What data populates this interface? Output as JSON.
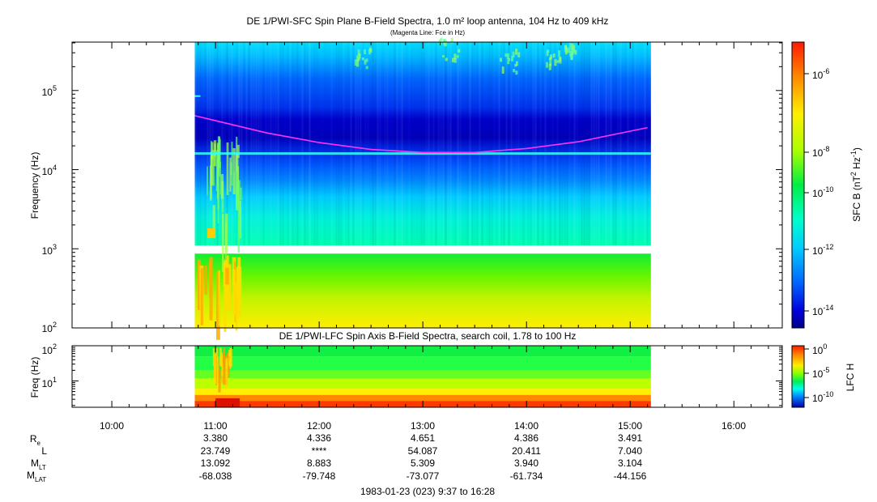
{
  "chart_data": [
    {
      "type": "heatmap",
      "title": "DE 1/PWI-SFC  Spin Plane B-Field Spectra, 1.0 m² loop antenna, 104 Hz to 409 kHz",
      "subtitle": "(Magenta Line: Fce in Hz)",
      "ylabel": "Frequency (Hz)",
      "yscale": "log",
      "ylim": [
        100,
        409000
      ],
      "yticks": [
        {
          "label": "10",
          "sup": "2",
          "value": 100
        },
        {
          "label": "10",
          "sup": "3",
          "value": 1000
        },
        {
          "label": "10",
          "sup": "4",
          "value": 10000
        },
        {
          "label": "10",
          "sup": "5",
          "value": 100000
        }
      ],
      "data_start": "10:48",
      "data_end": "15:12",
      "fce_line": {
        "color": "#ff33ff",
        "times": [
          "10:48",
          "11:30",
          "12:00",
          "12:30",
          "13:00",
          "13:30",
          "14:00",
          "14:30",
          "15:10"
        ],
        "freq_hz": [
          48000,
          29000,
          22000,
          18000,
          16500,
          16500,
          18500,
          22500,
          34000
        ]
      },
      "colorbar": {
        "label": "SFC B (nT",
        "label_sup1": "2",
        "label_mid": " Hz",
        "label_sup2": "-1",
        "label_end": ")",
        "scale": "log",
        "range": [
          1e-15,
          1e-05
        ],
        "ticks": [
          {
            "label": "10",
            "sup": "-6"
          },
          {
            "label": "10",
            "sup": "-8"
          },
          {
            "label": "10",
            "sup": "-10"
          },
          {
            "label": "10",
            "sup": "-12"
          },
          {
            "label": "10",
            "sup": "-14"
          }
        ]
      }
    },
    {
      "type": "heatmap",
      "title": "DE 1/PWI-LFC  Spin Axis B-Field Spectra, search coil, 1.78 to 100 Hz",
      "ylabel": "Freq (Hz)",
      "yscale": "log",
      "ylim": [
        1.78,
        100
      ],
      "yticks": [
        {
          "label": "10",
          "sup": "1",
          "value": 10
        },
        {
          "label": "10",
          "sup": "2",
          "value": 100
        }
      ],
      "data_start": "10:48",
      "data_end": "15:12",
      "colorbar": {
        "label": "LFC H",
        "scale": "log",
        "range": [
          1e-12,
          1
        ],
        "ticks": [
          {
            "label": "10",
            "sup": "0"
          },
          {
            "label": "10",
            "sup": "-5"
          },
          {
            "label": "10",
            "sup": "-10"
          }
        ]
      }
    }
  ],
  "time_axis": {
    "range": [
      "9:37",
      "16:28"
    ],
    "tick_labels": [
      "10:00",
      "11:00",
      "12:00",
      "13:00",
      "14:00",
      "15:00",
      "16:00"
    ]
  },
  "ephemeris": {
    "rows": [
      {
        "label": "R",
        "sub": "e",
        "values": [
          "3.380",
          "4.336",
          "4.651",
          "4.386",
          "3.491"
        ]
      },
      {
        "label": "L",
        "sub": "",
        "values": [
          "23.749",
          "****",
          "54.087",
          "20.411",
          "7.040"
        ]
      },
      {
        "label": "M",
        "sub": "LT",
        "values": [
          "13.092",
          "8.883",
          "5.309",
          "3.940",
          "3.104"
        ]
      },
      {
        "label": "M",
        "sub": "LAT",
        "values": [
          "-68.038",
          "-79.748",
          "-73.077",
          "-61.734",
          "-44.156"
        ]
      }
    ]
  },
  "footer": "1983-01-23 (023) 9:37 to 16:28"
}
